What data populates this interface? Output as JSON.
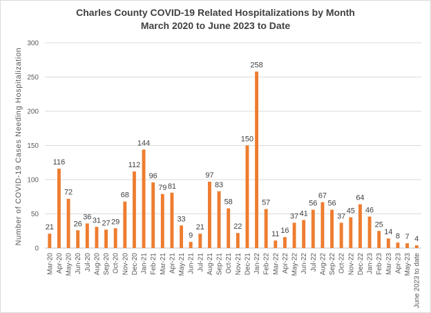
{
  "chart_data": {
    "type": "bar",
    "title": "Charles County COVID-19 Related Hospitalizations by Month",
    "subtitle": "March 2020  to June 2023  to Date",
    "xlabel": "",
    "ylabel": "Number  of COVID-19 Cases Needing Hospitalization",
    "ylim": [
      0,
      300
    ],
    "yticks": [
      "0",
      "50",
      "100",
      "150",
      "200",
      "250",
      "300"
    ],
    "grid": true,
    "bar_color": "#ED7D31",
    "grid_color": "#d9d9d9",
    "categories": [
      "Mar-20",
      "Apr-20",
      "May-20",
      "Jun-20",
      "Jul-20",
      "Aug-20",
      "Sep-20",
      "Oct-20",
      "Nov-20",
      "Dec-20",
      "Jan-21",
      "Feb-21",
      "Mar-21",
      "Apr-21",
      "May-21",
      "Jun-21",
      "Jul-21",
      "Aug-21",
      "Sep-21",
      "Oct-21",
      "Nov-21",
      "Dec-21",
      "Jan-22",
      "Feb-22",
      "Mar-22",
      "Apr-22",
      "May-22",
      "Jun-22",
      "Jul-22",
      "Aug-22",
      "Sep-22",
      "Oct-22",
      "Nov-22",
      "Dec-22",
      "Jan-23",
      "Feb-23",
      "Mar-23",
      "Apr-23",
      "May-23",
      "June 2023 to date"
    ],
    "values": [
      21,
      116,
      72,
      26,
      36,
      31,
      27,
      29,
      68,
      112,
      144,
      96,
      79,
      81,
      33,
      9,
      21,
      97,
      83,
      58,
      22,
      150,
      258,
      57,
      11,
      16,
      37,
      41,
      56,
      67,
      56,
      37,
      45,
      64,
      46,
      25,
      14,
      8,
      7,
      4
    ]
  }
}
